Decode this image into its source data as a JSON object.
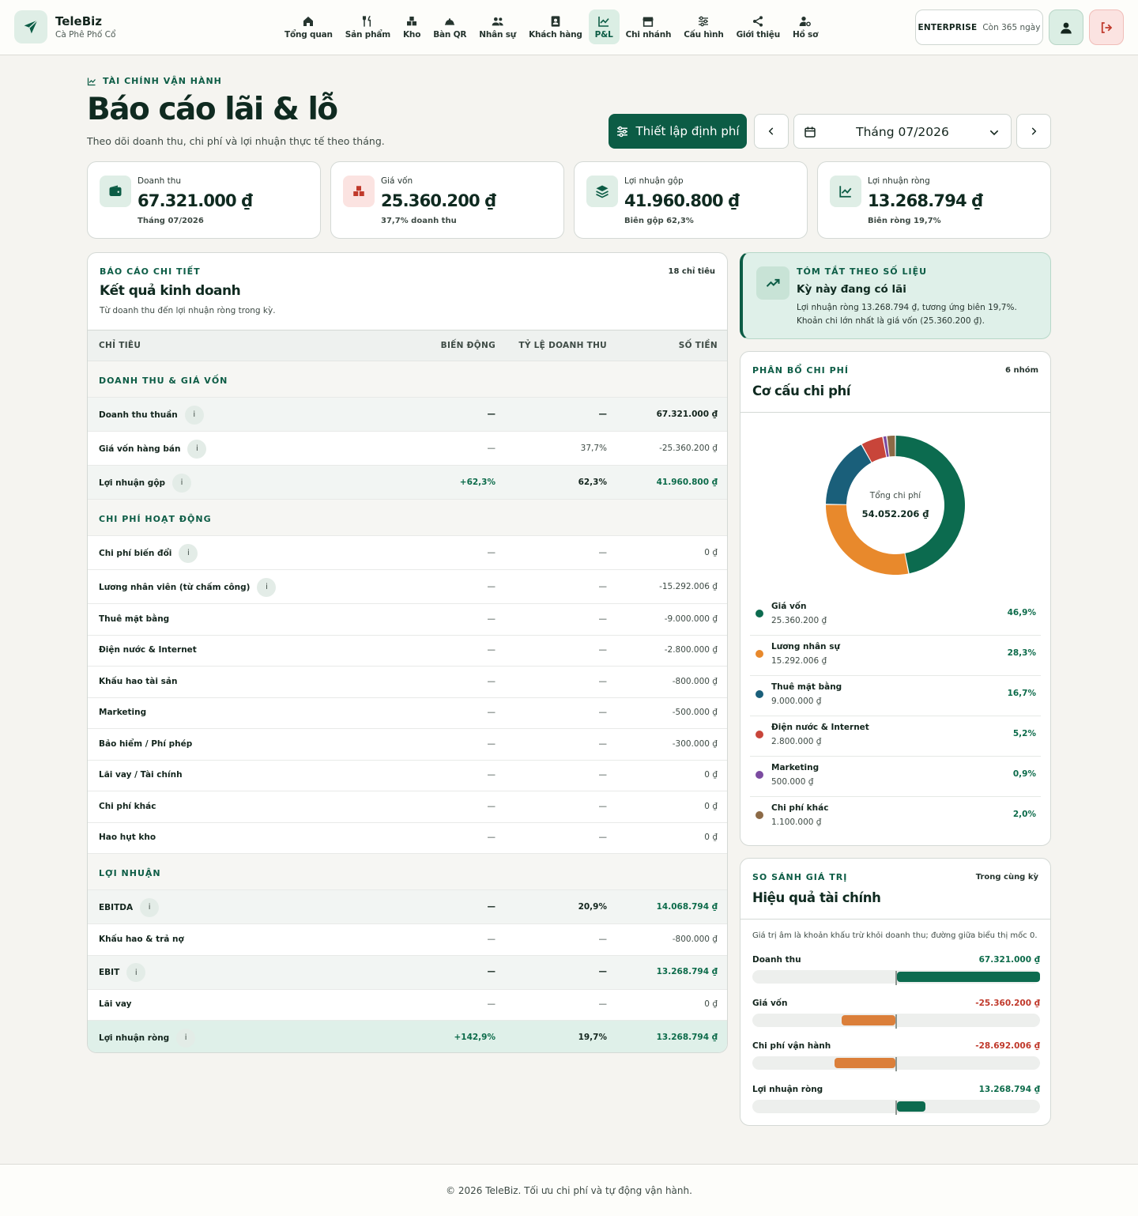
{
  "app": {
    "brand": "TeleBiz",
    "store": "Cà Phê Phố Cổ"
  },
  "nav": [
    {
      "label": "Tổng quan",
      "icon": "home-icon"
    },
    {
      "label": "Sản phẩm",
      "icon": "utensils-icon"
    },
    {
      "label": "Kho",
      "icon": "boxes-icon"
    },
    {
      "label": "Bàn QR",
      "icon": "bell-icon"
    },
    {
      "label": "Nhân sự",
      "icon": "users-icon"
    },
    {
      "label": "Khách hàng",
      "icon": "address-book-icon"
    },
    {
      "label": "P&L",
      "icon": "line-chart-icon",
      "active": true
    },
    {
      "label": "Chi nhánh",
      "icon": "store-icon"
    },
    {
      "label": "Cấu hình",
      "icon": "sliders-icon"
    },
    {
      "label": "Giới thiệu",
      "icon": "share-icon"
    },
    {
      "label": "Hồ sơ",
      "icon": "user-cog-icon"
    }
  ],
  "plan": {
    "name": "ENTERPRISE",
    "days": "Còn 365 ngày"
  },
  "header": {
    "eyebrow": "TÀI CHÍNH VẬN HÀNH",
    "title": "Báo cáo lãi & lỗ",
    "subtitle": "Theo dõi doanh thu, chi phí và lợi nhuận thực tế theo tháng.",
    "setup_button": "Thiết lập định phí",
    "month": "Tháng 07/2026"
  },
  "kpis": [
    {
      "label": "Doanh thu",
      "value": "67.321.000 ₫",
      "note": "Tháng 07/2026",
      "icon": "wallet-icon",
      "color": "#0c5c45",
      "bg": "#dfeee6"
    },
    {
      "label": "Giá vốn",
      "value": "25.360.200 ₫",
      "note": "37,7% doanh thu",
      "icon": "boxes-icon",
      "color": "#c0392b",
      "bg": "#fbe3e1"
    },
    {
      "label": "Lợi nhuận gộp",
      "value": "41.960.800 ₫",
      "note": "Biên gộp 62,3%",
      "icon": "layers-icon",
      "color": "#0c5c45",
      "bg": "#dfeee6"
    },
    {
      "label": "Lợi nhuận ròng",
      "value": "13.268.794 ₫",
      "note": "Biên ròng 19,7%",
      "icon": "line-chart-icon",
      "color": "#0c5c45",
      "bg": "#dfeee6"
    }
  ],
  "report": {
    "eyebrow": "BÁO CÁO CHI TIẾT",
    "count": "18 chỉ tiêu",
    "title": "Kết quả kinh doanh",
    "subtitle": "Từ doanh thu đến lợi nhuận ròng trong kỳ.",
    "columns": {
      "name": "CHỈ TIÊU",
      "variance": "BIẾN ĐỘNG",
      "ratio": "TỶ LỆ DOANH THU",
      "amount": "SỐ TIỀN"
    },
    "groups": [
      {
        "label": "DOANH THU & GIÁ VỐN",
        "rows": [
          {
            "name": "Doanh thu thuần",
            "info": true,
            "variance": "—",
            "ratio": "—",
            "amount": "67.321.000 ₫",
            "style": "hl"
          },
          {
            "name": "Giá vốn hàng bán",
            "info": true,
            "variance": "—",
            "ratio": "37,7%",
            "amount": "-25.360.200 ₫",
            "style": ""
          },
          {
            "name": "Lợi nhuận gộp",
            "info": true,
            "variance": "+62,3%",
            "ratio": "62,3%",
            "amount": "41.960.800 ₫",
            "style": "hlg"
          }
        ]
      },
      {
        "label": "CHI PHÍ HOẠT ĐỘNG",
        "rows": [
          {
            "name": "Chi phí biến đổi",
            "info": true,
            "variance": "—",
            "ratio": "—",
            "amount": "0 ₫",
            "style": ""
          },
          {
            "name": "Lương nhân viên (từ chấm công)",
            "info": true,
            "variance": "—",
            "ratio": "—",
            "amount": "-15.292.006 ₫",
            "style": ""
          },
          {
            "name": "Thuê mặt bằng",
            "info": false,
            "variance": "—",
            "ratio": "—",
            "amount": "-9.000.000 ₫",
            "style": ""
          },
          {
            "name": "Điện nước & Internet",
            "info": false,
            "variance": "—",
            "ratio": "—",
            "amount": "-2.800.000 ₫",
            "style": ""
          },
          {
            "name": "Khấu hao tài sản",
            "info": false,
            "variance": "—",
            "ratio": "—",
            "amount": "-800.000 ₫",
            "style": ""
          },
          {
            "name": "Marketing",
            "info": false,
            "variance": "—",
            "ratio": "—",
            "amount": "-500.000 ₫",
            "style": ""
          },
          {
            "name": "Bảo hiểm / Phí phép",
            "info": false,
            "variance": "—",
            "ratio": "—",
            "amount": "-300.000 ₫",
            "style": ""
          },
          {
            "name": "Lãi vay / Tài chính",
            "info": false,
            "variance": "—",
            "ratio": "—",
            "amount": "0 ₫",
            "style": ""
          },
          {
            "name": "Chi phí khác",
            "info": false,
            "variance": "—",
            "ratio": "—",
            "amount": "0 ₫",
            "style": ""
          },
          {
            "name": "Hao hụt kho",
            "info": false,
            "variance": "—",
            "ratio": "—",
            "amount": "0 ₫",
            "style": ""
          }
        ]
      },
      {
        "label": "LỢI NHUẬN",
        "rows": [
          {
            "name": "EBITDA",
            "info": true,
            "variance": "—",
            "ratio": "20,9%",
            "amount": "14.068.794 ₫",
            "style": "hlg"
          },
          {
            "name": "Khấu hao & trả nợ",
            "info": false,
            "variance": "—",
            "ratio": "—",
            "amount": "-800.000 ₫",
            "style": ""
          },
          {
            "name": "EBIT",
            "info": true,
            "variance": "—",
            "ratio": "—",
            "amount": "13.268.794 ₫",
            "style": "hlg"
          },
          {
            "name": "Lãi vay",
            "info": false,
            "variance": "—",
            "ratio": "—",
            "amount": "0 ₫",
            "style": ""
          },
          {
            "name": "Lợi nhuận ròng",
            "info": true,
            "variance": "+142,9%",
            "ratio": "19,7%",
            "amount": "13.268.794 ₫",
            "style": "net"
          }
        ]
      }
    ]
  },
  "summary": {
    "eyebrow": "TÓM TẮT THEO SỐ LIỆU",
    "title": "Kỳ này đang có lãi",
    "text": "Lợi nhuận ròng 13.268.794 ₫, tương ứng biên 19,7%. Khoản chi lớn nhất là giá vốn (25.360.200 ₫)."
  },
  "cost": {
    "eyebrow": "PHÂN BỔ CHI PHÍ",
    "count": "6 nhóm",
    "title": "Cơ cấu chi phí",
    "center_label": "Tổng chi phí",
    "center_total": "54.052.206 ₫",
    "items": [
      {
        "name": "Giá vốn",
        "value": "25.360.200 ₫",
        "pct": "46,9%",
        "share": 46.9,
        "color": "#0c6b4f"
      },
      {
        "name": "Lương nhân sự",
        "value": "15.292.006 ₫",
        "pct": "28,3%",
        "share": 28.3,
        "color": "#e8892c"
      },
      {
        "name": "Thuê mặt bằng",
        "value": "9.000.000 ₫",
        "pct": "16,7%",
        "share": 16.7,
        "color": "#1a5f7a"
      },
      {
        "name": "Điện nước & Internet",
        "value": "2.800.000 ₫",
        "pct": "5,2%",
        "share": 5.2,
        "color": "#c8453a"
      },
      {
        "name": "Marketing",
        "value": "500.000 ₫",
        "pct": "0,9%",
        "share": 0.9,
        "color": "#7b4ba0"
      },
      {
        "name": "Chi phí khác",
        "value": "1.100.000 ₫",
        "pct": "2,0%",
        "share": 2.0,
        "color": "#8c6a46"
      }
    ]
  },
  "perf": {
    "eyebrow": "SO SÁNH GIÁ TRỊ",
    "right": "Trong cùng kỳ",
    "title": "Hiệu quả tài chính",
    "note": "Giá trị âm là khoản khấu trừ khỏi doanh thu; đường giữa biểu thị mốc 0.",
    "items": [
      {
        "name": "Doanh thu",
        "value": "67.321.000 ₫",
        "amount": 67321000,
        "color": "#0c6b4f",
        "text_color": "#0c6b4a"
      },
      {
        "name": "Giá vốn",
        "value": "-25.360.200 ₫",
        "amount": -25360200,
        "color": "#db7f3a",
        "text_color": "#c0392b"
      },
      {
        "name": "Chi phí vận hành",
        "value": "-28.692.006 ₫",
        "amount": -28692006,
        "color": "#db7f3a",
        "text_color": "#c0392b"
      },
      {
        "name": "Lợi nhuận ròng",
        "value": "13.268.794 ₫",
        "amount": 13268794,
        "color": "#0c6b4f",
        "text_color": "#0c6b4a"
      }
    ]
  },
  "footer": "© 2026 TeleBiz. Tối ưu chi phí và tự động vận hành."
}
